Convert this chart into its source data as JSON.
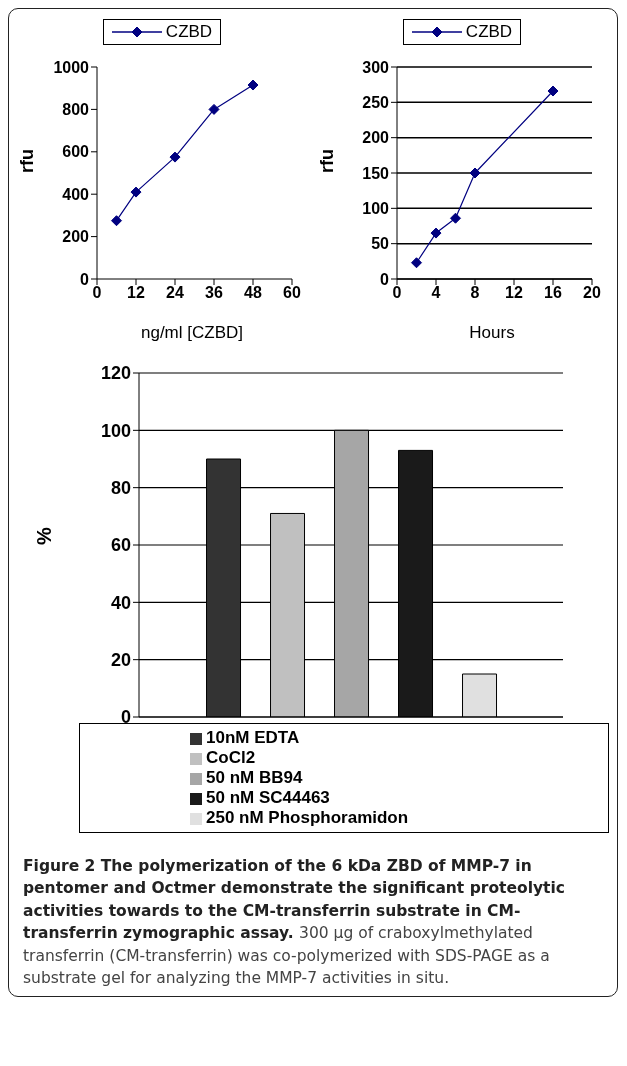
{
  "chart_data": [
    {
      "type": "line",
      "xlabel": "ng/ml [CZBD]",
      "ylabel": "rfu",
      "x": [
        6,
        12,
        24,
        36,
        48
      ],
      "series": [
        {
          "name": "CZBD",
          "color": "#000080",
          "values": [
            275,
            410,
            575,
            800,
            915
          ]
        }
      ],
      "xlim": [
        0,
        60
      ],
      "xticks": [
        0,
        12,
        24,
        36,
        48,
        60
      ],
      "ylim": [
        0,
        1000
      ],
      "yticks": [
        0,
        200,
        400,
        600,
        800,
        1000
      ],
      "grid": false,
      "legend": "top",
      "marker": "diamond",
      "line_style": "solid"
    },
    {
      "type": "line",
      "xlabel": "Hours",
      "ylabel": "rfu",
      "x": [
        2,
        4,
        6,
        8,
        16
      ],
      "series": [
        {
          "name": "CZBD",
          "color": "#000080",
          "values": [
            23,
            65,
            86,
            150,
            266
          ]
        }
      ],
      "xlim": [
        0,
        20
      ],
      "xticks": [
        0,
        4,
        8,
        12,
        16,
        20
      ],
      "ylim": [
        0,
        300
      ],
      "yticks": [
        0,
        50,
        100,
        150,
        200,
        250,
        300
      ],
      "grid": "y",
      "legend": "top",
      "marker": "diamond",
      "line_style": "solid"
    },
    {
      "type": "bar",
      "ylabel": "%",
      "categories": [
        null
      ],
      "series": [
        {
          "name": "10nM EDTA",
          "color": "#333333",
          "values": [
            90
          ]
        },
        {
          "name": "CoCl2",
          "color": "#c0c0c0",
          "values": [
            71
          ]
        },
        {
          "name": "50 nM BB94",
          "color": "#a6a6a6",
          "values": [
            100
          ]
        },
        {
          "name": "50 nM SC44463",
          "color": "#1a1a1a",
          "values": [
            93
          ]
        },
        {
          "name": "250 nM Phosphoramidon",
          "color": "#e0e0e0",
          "values": [
            15
          ]
        }
      ],
      "ylim": [
        0,
        120
      ],
      "yticks": [
        0,
        20,
        40,
        60,
        80,
        100,
        120
      ],
      "grid": "y",
      "legend": "bottom",
      "tick_labels": "y",
      "annotations": [
        "Figure 2 The polymerization of the 6 kDa ZBD of MMP-7 in pentomer and Octmer demonstrate the significant proteolytic activities towards to the CM-transferrin substrate in CM-transferrin zymographic assay.",
        "300 µg of craboxylmethylated transferrin (CM-transferrin) was co-polymerized with SDS-PAGE as a substrate gel for analyzing the MMP-7 activities in situ."
      ]
    }
  ]
}
